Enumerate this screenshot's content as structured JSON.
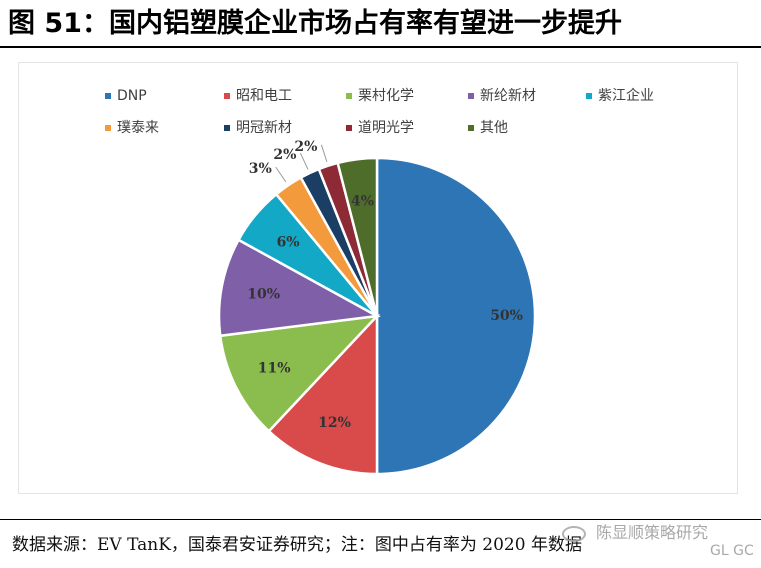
{
  "figure": {
    "title": "图 51：国内铝塑膜企业市场占有率有望进一步提升",
    "source": "数据来源：EV TanK，国泰君安证券研究；注：图中占有率为 2020 年数据"
  },
  "watermark": {
    "name": "陈显顺策略研究",
    "sub": "GL GC"
  },
  "chart_data": {
    "type": "pie",
    "title": "",
    "unit": "%",
    "slices": [
      {
        "name": "DNP",
        "value": 50,
        "label": "50%",
        "color": "#2e75b6"
      },
      {
        "name": "昭和电工",
        "value": 12,
        "label": "12%",
        "color": "#d94a4a"
      },
      {
        "name": "栗村化学",
        "value": 11,
        "label": "11%",
        "color": "#8bbd4e"
      },
      {
        "name": "新纶新材",
        "value": 10,
        "label": "10%",
        "color": "#7f5fa8"
      },
      {
        "name": "紫江企业",
        "value": 6,
        "label": "6%",
        "color": "#12a8c6"
      },
      {
        "name": "璞泰来",
        "value": 3,
        "label": "3%",
        "color": "#f39a3c"
      },
      {
        "name": "明冠新材",
        "value": 2,
        "label": "2%",
        "color": "#1a3e64"
      },
      {
        "name": "道明光学",
        "value": 2,
        "label": "2%",
        "color": "#8e2a35"
      },
      {
        "name": "其他",
        "value": 4,
        "label": "4%",
        "color": "#4f6d2a"
      }
    ],
    "legend_position": "top",
    "start_angle": "12 o'clock",
    "direction": "clockwise"
  }
}
